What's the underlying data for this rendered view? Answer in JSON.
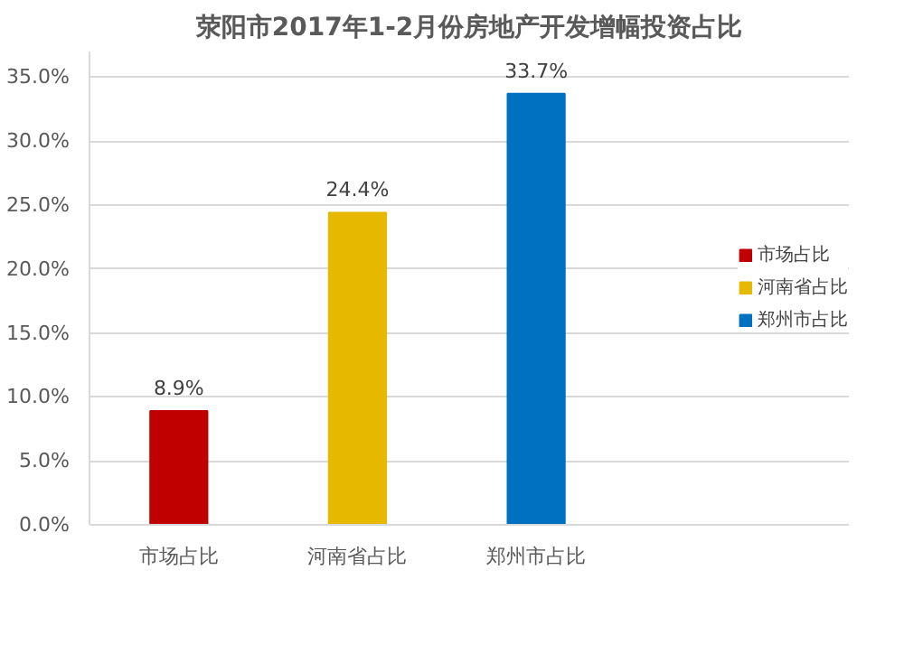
{
  "chart_data": {
    "type": "bar",
    "title": "荥阳市2017年1-2月份房地产开发增幅投资占比",
    "categories": [
      "市场占比",
      "河南省占比",
      "郑州市占比"
    ],
    "series": [
      {
        "name": "市场占比",
        "color": "#c00000",
        "values": [
          8.9,
          null,
          null
        ],
        "value_labels": [
          "8.9%",
          null,
          null
        ]
      },
      {
        "name": "河南省占比",
        "color": "#e6b800",
        "values": [
          null,
          24.4,
          null
        ],
        "value_labels": [
          null,
          "24.4%",
          null
        ]
      },
      {
        "name": "郑州市占比",
        "color": "#0070c0",
        "values": [
          null,
          null,
          33.7
        ],
        "value_labels": [
          null,
          null,
          "33.7%"
        ]
      }
    ],
    "ylim": [
      0,
      37
    ],
    "yticks": [
      {
        "value": 0,
        "label": "0.0%"
      },
      {
        "value": 5,
        "label": "5.0%"
      },
      {
        "value": 10,
        "label": "10.0%"
      },
      {
        "value": 15,
        "label": "15.0%"
      },
      {
        "value": 20,
        "label": "20.0%"
      },
      {
        "value": 25,
        "label": "25.0%"
      },
      {
        "value": 30,
        "label": "30.0%"
      },
      {
        "value": 35,
        "label": "35.0%"
      }
    ],
    "grid": "y",
    "legend": "right"
  }
}
